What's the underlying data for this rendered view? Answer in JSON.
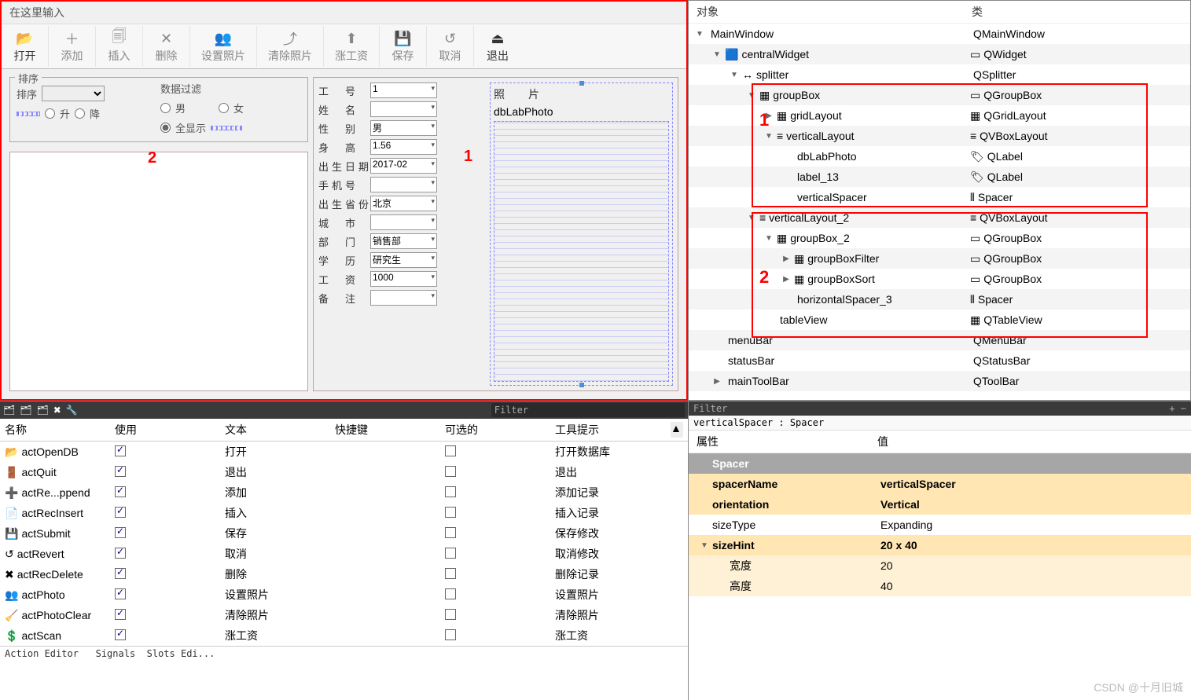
{
  "searchPlaceholder": "在这里输入",
  "toolbar": [
    {
      "label": "打开",
      "icon": "📂"
    },
    {
      "label": "添加",
      "icon": "＋"
    },
    {
      "label": "插入",
      "icon": "🗐"
    },
    {
      "label": "删除",
      "icon": "✕"
    },
    {
      "label": "设置照片",
      "icon": "👥"
    },
    {
      "label": "清除照片",
      "icon": "⤴"
    },
    {
      "label": "涨工资",
      "icon": "⬆"
    },
    {
      "label": "保存",
      "icon": "💾"
    },
    {
      "label": "取消",
      "icon": "↺"
    },
    {
      "label": "退出",
      "icon": "⏏"
    }
  ],
  "sortTitle": "排序",
  "sortLabel": "排序",
  "sortAsc": "升",
  "sortDesc": "降",
  "filterTitle": "数据过滤",
  "filterMale": "男",
  "filterFemale": "女",
  "filterAll": "全显示",
  "form": [
    {
      "label": "工　号",
      "value": "1",
      "type": "spin"
    },
    {
      "label": "姓　名",
      "value": "",
      "type": "text"
    },
    {
      "label": "性　别",
      "value": "男",
      "type": "combo"
    },
    {
      "label": "身　高",
      "value": "1.56",
      "type": "spin"
    },
    {
      "label": "出生日期",
      "value": "2017-02",
      "type": "date"
    },
    {
      "label": "手机号",
      "value": "",
      "type": "text"
    },
    {
      "label": "出生省份",
      "value": "北京",
      "type": "combo"
    },
    {
      "label": "城　市",
      "value": "",
      "type": "text"
    },
    {
      "label": "部　门",
      "value": "销售部",
      "type": "combo"
    },
    {
      "label": "学　历",
      "value": "研究生",
      "type": "combo"
    },
    {
      "label": "工　资",
      "value": "1000",
      "type": "spin"
    },
    {
      "label": "备　注",
      "value": "",
      "type": "spin"
    }
  ],
  "photoTitle": "照　片",
  "photoPlaceholder": "dbLabPhoto",
  "tree": {
    "headers": [
      "对象",
      "类"
    ],
    "rows": [
      {
        "depth": 0,
        "exp": "open",
        "icon": "",
        "name": "MainWindow",
        "cls": "QMainWindow"
      },
      {
        "depth": 1,
        "exp": "open",
        "icon": "🟦",
        "name": "centralWidget",
        "cls": "QWidget",
        "clsIcon": "▭"
      },
      {
        "depth": 2,
        "exp": "open",
        "icon": "↔",
        "name": "splitter",
        "cls": "QSplitter"
      },
      {
        "depth": 3,
        "exp": "open",
        "icon": "▦",
        "name": "groupBox",
        "cls": "QGroupBox",
        "clsIcon": "▭"
      },
      {
        "depth": 4,
        "exp": "closed",
        "icon": "▦",
        "name": "gridLayout",
        "cls": "QGridLayout",
        "clsIcon": "▦"
      },
      {
        "depth": 4,
        "exp": "open",
        "icon": "≡",
        "name": "verticalLayout",
        "cls": "QVBoxLayout",
        "clsIcon": "≡"
      },
      {
        "depth": 5,
        "exp": "",
        "icon": "",
        "name": "dbLabPhoto",
        "cls": "QLabel",
        "clsIcon": "🏷"
      },
      {
        "depth": 5,
        "exp": "",
        "icon": "",
        "name": "label_13",
        "cls": "QLabel",
        "clsIcon": "🏷"
      },
      {
        "depth": 5,
        "exp": "",
        "icon": "",
        "name": "verticalSpacer",
        "cls": "Spacer",
        "clsIcon": "⫴"
      },
      {
        "depth": 3,
        "exp": "open",
        "icon": "≡",
        "name": "verticalLayout_2",
        "cls": "QVBoxLayout",
        "clsIcon": "≡"
      },
      {
        "depth": 4,
        "exp": "open",
        "icon": "▦",
        "name": "groupBox_2",
        "cls": "QGroupBox",
        "clsIcon": "▭"
      },
      {
        "depth": 5,
        "exp": "closed",
        "icon": "▦",
        "name": "groupBoxFilter",
        "cls": "QGroupBox",
        "clsIcon": "▭"
      },
      {
        "depth": 5,
        "exp": "closed",
        "icon": "▦",
        "name": "groupBoxSort",
        "cls": "QGroupBox",
        "clsIcon": "▭"
      },
      {
        "depth": 5,
        "exp": "",
        "icon": "",
        "name": "horizontalSpacer_3",
        "cls": "Spacer",
        "clsIcon": "⫴"
      },
      {
        "depth": 4,
        "exp": "",
        "icon": "",
        "name": "tableView",
        "cls": "QTableView",
        "clsIcon": "▦"
      },
      {
        "depth": 1,
        "exp": "",
        "icon": "",
        "name": "menuBar",
        "cls": "QMenuBar"
      },
      {
        "depth": 1,
        "exp": "",
        "icon": "",
        "name": "statusBar",
        "cls": "QStatusBar"
      },
      {
        "depth": 1,
        "exp": "closed",
        "icon": "",
        "name": "mainToolBar",
        "cls": "QToolBar"
      }
    ]
  },
  "actionsFilter": "Filter",
  "actionsHeaders": [
    "名称",
    "使用",
    "文本",
    "快捷键",
    "可选的",
    "工具提示"
  ],
  "actions": [
    {
      "icon": "📂",
      "name": "actOpenDB",
      "used": true,
      "text": "打开",
      "opt": false,
      "tip": "打开数据库"
    },
    {
      "icon": "🚪",
      "name": "actQuit",
      "used": true,
      "text": "退出",
      "opt": false,
      "tip": "退出"
    },
    {
      "icon": "➕",
      "name": "actRe...ppend",
      "used": true,
      "text": "添加",
      "opt": false,
      "tip": "添加记录"
    },
    {
      "icon": "📄",
      "name": "actRecInsert",
      "used": true,
      "text": "插入",
      "opt": false,
      "tip": "插入记录"
    },
    {
      "icon": "💾",
      "name": "actSubmit",
      "used": true,
      "text": "保存",
      "opt": false,
      "tip": "保存修改"
    },
    {
      "icon": "↺",
      "name": "actRevert",
      "used": true,
      "text": "取消",
      "opt": false,
      "tip": "取消修改"
    },
    {
      "icon": "✖",
      "name": "actRecDelete",
      "used": true,
      "text": "删除",
      "opt": false,
      "tip": "删除记录"
    },
    {
      "icon": "👥",
      "name": "actPhoto",
      "used": true,
      "text": "设置照片",
      "opt": false,
      "tip": "设置照片"
    },
    {
      "icon": "🧹",
      "name": "actPhotoClear",
      "used": true,
      "text": "清除照片",
      "opt": false,
      "tip": "清除照片"
    },
    {
      "icon": "💲",
      "name": "actScan",
      "used": true,
      "text": "涨工资",
      "opt": false,
      "tip": "涨工资"
    }
  ],
  "actionsFoot": "Action Editor   Signals  Slots Edi...",
  "propFilter": "Filter",
  "propFilterBtns": "+ −",
  "propCrumb": "verticalSpacer : Spacer",
  "propHeaders": [
    "属性",
    "值"
  ],
  "props": [
    {
      "type": "sec",
      "name": "Spacer",
      "val": ""
    },
    {
      "type": "hl",
      "name": "spacerName",
      "val": "verticalSpacer"
    },
    {
      "type": "hl",
      "name": "orientation",
      "val": "Vertical"
    },
    {
      "type": "",
      "name": "sizeType",
      "val": "Expanding"
    },
    {
      "type": "hl",
      "name": "sizeHint",
      "val": "20 x 40",
      "exp": "open"
    },
    {
      "type": "hl2",
      "name": "宽度",
      "val": "20",
      "indent": 1
    },
    {
      "type": "hl2",
      "name": "高度",
      "val": "40",
      "indent": 1
    }
  ],
  "watermark": "CSDN @十月旧城",
  "colors": {
    "red": "#f00",
    "toolbarBg": "#f7f7f7",
    "panelBg": "#f0f0f0",
    "highlight": "#ffe6b3"
  }
}
